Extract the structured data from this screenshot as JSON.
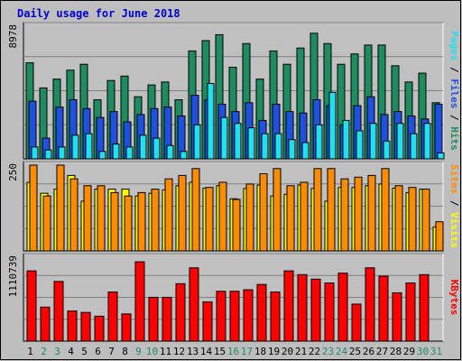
{
  "chart_data": {
    "type": "bar",
    "title": "Daily usage for June 2018",
    "categories": [
      "1",
      "2",
      "3",
      "4",
      "5",
      "6",
      "7",
      "8",
      "9",
      "10",
      "11",
      "12",
      "13",
      "14",
      "15",
      "16",
      "17",
      "18",
      "19",
      "20",
      "21",
      "22",
      "23",
      "24",
      "25",
      "26",
      "27",
      "28",
      "29",
      "30",
      "31"
    ],
    "weekend_days": [
      "2",
      "3",
      "9",
      "10",
      "16",
      "17",
      "23",
      "24",
      "30",
      "31"
    ],
    "colors": {
      "hits": "#1e8c60",
      "files": "#2050e0",
      "pages": "#20e0f0",
      "visits": "#ffff00",
      "sites": "#ff8c00",
      "kbytes": "#ff0000",
      "title": "#0000cc",
      "weekday_label": "#000000",
      "weekend_label": "#1e8c60",
      "background": "#bebebe",
      "plot_background": "#c0c0c0",
      "grid": "#808080"
    },
    "panels": [
      {
        "name": "hits-files-pages",
        "ymax_label": "8978",
        "ylim": [
          0,
          8978
        ],
        "grid": true,
        "side_labels": [
          {
            "text": "Pages",
            "color": "#20e0f0"
          },
          {
            "text": " / ",
            "color": "#000000"
          },
          {
            "text": "Files",
            "color": "#2050e0"
          },
          {
            "text": " / ",
            "color": "#000000"
          },
          {
            "text": "Hits",
            "color": "#1e8c60"
          }
        ],
        "series": [
          {
            "name": "Hits",
            "key": "hits",
            "values": [
              6500,
              4800,
              5400,
              6000,
              6400,
              4000,
              5300,
              5600,
              4200,
              5000,
              5200,
              4000,
              7300,
              8000,
              8400,
              6200,
              7800,
              5400,
              7300,
              6400,
              7500,
              8500,
              7800,
              6400,
              7100,
              7700,
              7700,
              6300,
              5200,
              5800,
              3800
            ]
          },
          {
            "name": "Files",
            "key": "files",
            "values": [
              3900,
              1400,
              3500,
              4000,
              3400,
              2800,
              3200,
              2500,
              3000,
              3400,
              3500,
              2900,
              4300,
              4000,
              3700,
              3200,
              3800,
              2600,
              3700,
              3200,
              3100,
              4000,
              3600,
              2300,
              3600,
              4200,
              3000,
              3200,
              2900,
              2700,
              3700
            ]
          },
          {
            "name": "Pages",
            "key": "pages",
            "values": [
              800,
              600,
              800,
              1600,
              1700,
              500,
              1000,
              800,
              1600,
              1400,
              900,
              500,
              2300,
              5100,
              2800,
              2400,
              2100,
              1700,
              1700,
              1300,
              1100,
              2300,
              4500,
              2600,
              1900,
              2400,
              1200,
              2400,
              1700,
              2400,
              400
            ]
          }
        ]
      },
      {
        "name": "visits-sites",
        "ymax_label": "250",
        "ylim": [
          0,
          250
        ],
        "grid": true,
        "side_labels": [
          {
            "text": "Sites",
            "color": "#ff8c00"
          },
          {
            "text": " / ",
            "color": "#000000"
          },
          {
            "text": "Visits",
            "color": "#ffff00"
          }
        ],
        "series": [
          {
            "name": "Visits",
            "key": "visits",
            "values": [
              200,
              168,
              180,
              220,
              145,
              180,
              180,
              180,
              160,
              168,
              178,
              190,
              200,
              183,
              190,
              152,
              182,
              192,
              160,
              165,
              192,
              182,
              145,
              185,
              185,
              190,
              195,
              183,
              170,
              180,
              70
            ]
          },
          {
            "name": "Sites",
            "key": "sites",
            "values": [
              250,
              160,
              250,
              210,
              190,
              190,
              170,
              160,
              170,
              180,
              210,
              220,
              240,
              185,
              200,
              150,
              195,
              225,
              240,
              190,
              200,
              240,
              240,
              210,
              215,
              220,
              240,
              190,
              185,
              180,
              85
            ]
          }
        ]
      },
      {
        "name": "kbytes",
        "ymax_label": "1110739",
        "ylim": [
          0,
          1110739
        ],
        "grid": true,
        "side_labels": [
          {
            "text": "KBytes",
            "color": "#ff0000"
          }
        ],
        "series": [
          {
            "name": "KBytes",
            "key": "kbytes",
            "values": [
              930000,
              450000,
              790000,
              400000,
              380000,
              330000,
              650000,
              360000,
              1050000,
              580000,
              580000,
              760000,
              970000,
              520000,
              660000,
              660000,
              680000,
              750000,
              650000,
              930000,
              880000,
              820000,
              770000,
              900000,
              490000,
              970000,
              860000,
              640000,
              770000,
              880000,
              0
            ]
          }
        ]
      }
    ]
  }
}
